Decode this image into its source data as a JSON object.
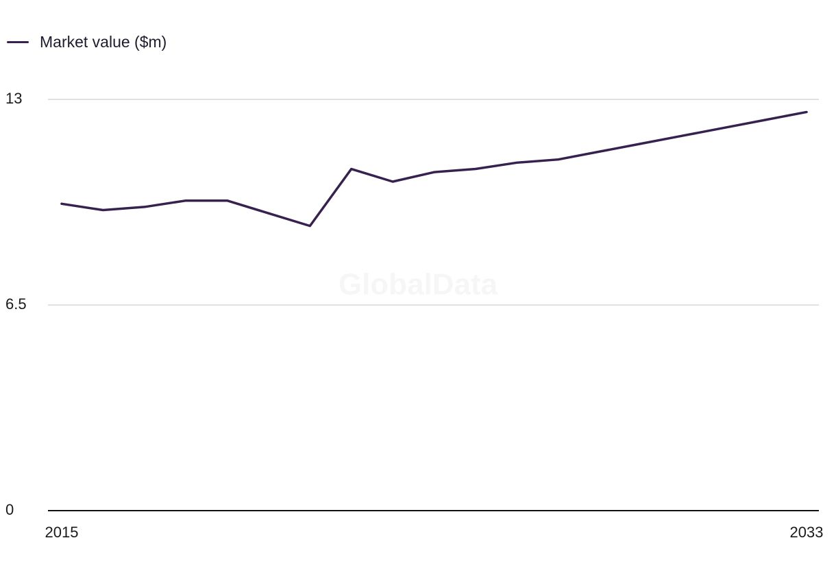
{
  "legend": {
    "label": "Market value ($m)"
  },
  "watermark": "GlobalData",
  "colors": {
    "series": "#36214f",
    "grid": "#d6d6d6",
    "axis": "#111111"
  },
  "chart_data": {
    "type": "line",
    "title": "",
    "xlabel": "",
    "ylabel": "",
    "x": [
      2015,
      2016,
      2017,
      2018,
      2019,
      2020,
      2021,
      2022,
      2023,
      2024,
      2025,
      2026,
      2027,
      2028,
      2029,
      2030,
      2031,
      2032,
      2033
    ],
    "series": [
      {
        "name": "Market value ($m)",
        "values": [
          9.7,
          9.5,
          9.6,
          9.8,
          9.8,
          9.4,
          9.0,
          10.8,
          10.4,
          10.7,
          10.8,
          11.0,
          11.1,
          11.35,
          11.6,
          11.85,
          12.1,
          12.35,
          12.6
        ]
      }
    ],
    "ylim": [
      0,
      13
    ],
    "yticks": [
      "0",
      "6.5",
      "13"
    ],
    "yticks_values": [
      0,
      6.5,
      13
    ],
    "xtick_labels": [
      "2015",
      "2033"
    ],
    "xtick_values": [
      2015,
      2033
    ],
    "grid": true,
    "legend_position": "top-left"
  }
}
